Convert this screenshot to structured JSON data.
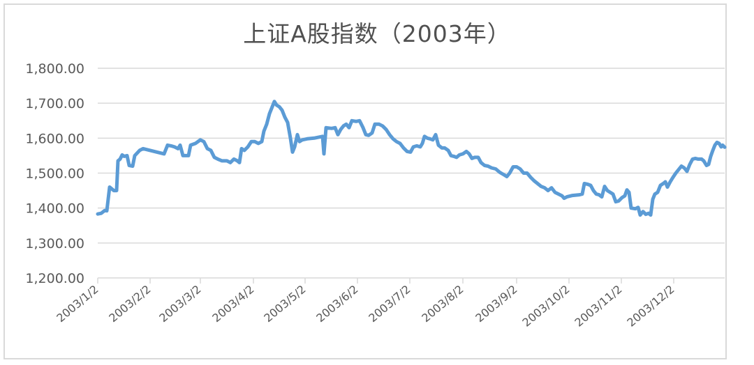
{
  "chart_data": {
    "type": "line",
    "title": "上证A股指数（2003年）",
    "xlabel": "",
    "ylabel": "",
    "ylim": [
      1200,
      1800
    ],
    "yticks": [
      "1,200.00",
      "1,300.00",
      "1,400.00",
      "1,500.00",
      "1,600.00",
      "1,700.00",
      "1,800.00"
    ],
    "ytick_values": [
      1200,
      1300,
      1400,
      1500,
      1600,
      1700,
      1800
    ],
    "xticks": [
      "2003/1/2",
      "2003/2/2",
      "2003/3/2",
      "2003/4/2",
      "2003/5/2",
      "2003/6/2",
      "2003/7/2",
      "2003/8/2",
      "2003/9/2",
      "2003/10/2",
      "2003/11/2",
      "2003/12/2"
    ],
    "grid": true,
    "legend": "none",
    "line_color": "#5b9bd5",
    "series": [
      {
        "name": "上证A股指数",
        "points": [
          [
            140,
            1383
          ],
          [
            145,
            1385
          ],
          [
            150,
            1393
          ],
          [
            153,
            1392
          ],
          [
            157,
            1460
          ],
          [
            160,
            1455
          ],
          [
            163,
            1450
          ],
          [
            167,
            1450
          ],
          [
            169,
            1535
          ],
          [
            172,
            1540
          ],
          [
            175,
            1552
          ],
          [
            178,
            1548
          ],
          [
            182,
            1550
          ],
          [
            185,
            1522
          ],
          [
            190,
            1520
          ],
          [
            193,
            1550
          ],
          [
            200,
            1565
          ],
          [
            205,
            1570
          ],
          [
            215,
            1565
          ],
          [
            225,
            1560
          ],
          [
            235,
            1555
          ],
          [
            240,
            1580
          ],
          [
            245,
            1578
          ],
          [
            250,
            1575
          ],
          [
            255,
            1570
          ],
          [
            258,
            1580
          ],
          [
            262,
            1550
          ],
          [
            270,
            1550
          ],
          [
            273,
            1580
          ],
          [
            280,
            1585
          ],
          [
            287,
            1595
          ],
          [
            292,
            1590
          ],
          [
            297,
            1570
          ],
          [
            302,
            1565
          ],
          [
            307,
            1545
          ],
          [
            312,
            1540
          ],
          [
            318,
            1535
          ],
          [
            325,
            1535
          ],
          [
            330,
            1530
          ],
          [
            335,
            1540
          ],
          [
            340,
            1535
          ],
          [
            343,
            1530
          ],
          [
            346,
            1570
          ],
          [
            350,
            1565
          ],
          [
            355,
            1575
          ],
          [
            360,
            1590
          ],
          [
            365,
            1590
          ],
          [
            370,
            1585
          ],
          [
            375,
            1590
          ],
          [
            378,
            1620
          ],
          [
            382,
            1640
          ],
          [
            386,
            1670
          ],
          [
            390,
            1690
          ],
          [
            393,
            1705
          ],
          [
            396,
            1695
          ],
          [
            400,
            1690
          ],
          [
            404,
            1680
          ],
          [
            408,
            1660
          ],
          [
            412,
            1645
          ],
          [
            416,
            1600
          ],
          [
            419,
            1560
          ],
          [
            422,
            1575
          ],
          [
            426,
            1610
          ],
          [
            429,
            1590
          ],
          [
            433,
            1595
          ],
          [
            440,
            1598
          ],
          [
            450,
            1600
          ],
          [
            462,
            1605
          ],
          [
            464,
            1555
          ],
          [
            467,
            1630
          ],
          [
            475,
            1628
          ],
          [
            480,
            1630
          ],
          [
            484,
            1610
          ],
          [
            488,
            1625
          ],
          [
            492,
            1635
          ],
          [
            496,
            1640
          ],
          [
            500,
            1630
          ],
          [
            504,
            1650
          ],
          [
            510,
            1648
          ],
          [
            515,
            1650
          ],
          [
            520,
            1630
          ],
          [
            524,
            1610
          ],
          [
            528,
            1608
          ],
          [
            533,
            1615
          ],
          [
            537,
            1640
          ],
          [
            543,
            1640
          ],
          [
            548,
            1635
          ],
          [
            553,
            1625
          ],
          [
            558,
            1610
          ],
          [
            563,
            1598
          ],
          [
            568,
            1590
          ],
          [
            573,
            1585
          ],
          [
            578,
            1572
          ],
          [
            583,
            1562
          ],
          [
            588,
            1560
          ],
          [
            592,
            1575
          ],
          [
            597,
            1578
          ],
          [
            602,
            1575
          ],
          [
            605,
            1585
          ],
          [
            608,
            1605
          ],
          [
            612,
            1600
          ],
          [
            616,
            1598
          ],
          [
            620,
            1595
          ],
          [
            624,
            1610
          ],
          [
            628,
            1580
          ],
          [
            633,
            1572
          ],
          [
            637,
            1572
          ],
          [
            642,
            1565
          ],
          [
            646,
            1550
          ],
          [
            650,
            1548
          ],
          [
            654,
            1545
          ],
          [
            658,
            1552
          ],
          [
            663,
            1555
          ],
          [
            668,
            1562
          ],
          [
            672,
            1555
          ],
          [
            676,
            1542
          ],
          [
            680,
            1545
          ],
          [
            685,
            1545
          ],
          [
            689,
            1530
          ],
          [
            694,
            1522
          ],
          [
            699,
            1520
          ],
          [
            704,
            1515
          ],
          [
            710,
            1512
          ],
          [
            716,
            1502
          ],
          [
            722,
            1495
          ],
          [
            726,
            1490
          ],
          [
            730,
            1500
          ],
          [
            735,
            1518
          ],
          [
            740,
            1518
          ],
          [
            745,
            1512
          ],
          [
            750,
            1500
          ],
          [
            755,
            1500
          ],
          [
            760,
            1488
          ],
          [
            765,
            1478
          ],
          [
            770,
            1470
          ],
          [
            775,
            1462
          ],
          [
            780,
            1458
          ],
          [
            785,
            1450
          ],
          [
            790,
            1458
          ],
          [
            795,
            1445
          ],
          [
            800,
            1440
          ],
          [
            805,
            1435
          ],
          [
            808,
            1428
          ],
          [
            812,
            1432
          ],
          [
            820,
            1436
          ],
          [
            830,
            1438
          ],
          [
            834,
            1440
          ],
          [
            837,
            1470
          ],
          [
            842,
            1468
          ],
          [
            846,
            1465
          ],
          [
            850,
            1450
          ],
          [
            854,
            1440
          ],
          [
            858,
            1438
          ],
          [
            862,
            1432
          ],
          [
            866,
            1462
          ],
          [
            870,
            1450
          ],
          [
            874,
            1445
          ],
          [
            878,
            1440
          ],
          [
            882,
            1418
          ],
          [
            886,
            1420
          ],
          [
            891,
            1430
          ],
          [
            895,
            1435
          ],
          [
            898,
            1452
          ],
          [
            901,
            1445
          ],
          [
            904,
            1400
          ],
          [
            910,
            1398
          ],
          [
            914,
            1402
          ],
          [
            917,
            1380
          ],
          [
            921,
            1390
          ],
          [
            925,
            1382
          ],
          [
            929,
            1385
          ],
          [
            932,
            1380
          ],
          [
            935,
            1425
          ],
          [
            938,
            1440
          ],
          [
            942,
            1445
          ],
          [
            946,
            1465
          ],
          [
            950,
            1470
          ],
          [
            953,
            1475
          ],
          [
            956,
            1460
          ],
          [
            960,
            1475
          ],
          [
            964,
            1488
          ],
          [
            968,
            1500
          ],
          [
            972,
            1510
          ],
          [
            976,
            1520
          ],
          [
            980,
            1515
          ],
          [
            984,
            1505
          ],
          [
            988,
            1525
          ],
          [
            992,
            1540
          ],
          [
            996,
            1542
          ],
          [
            1000,
            1540
          ],
          [
            1005,
            1540
          ],
          [
            1008,
            1535
          ],
          [
            1012,
            1522
          ],
          [
            1015,
            1525
          ],
          [
            1018,
            1548
          ],
          [
            1021,
            1565
          ],
          [
            1024,
            1580
          ],
          [
            1027,
            1588
          ],
          [
            1030,
            1585
          ],
          [
            1033,
            1575
          ],
          [
            1035,
            1580
          ],
          [
            1038,
            1574
          ]
        ]
      }
    ]
  }
}
